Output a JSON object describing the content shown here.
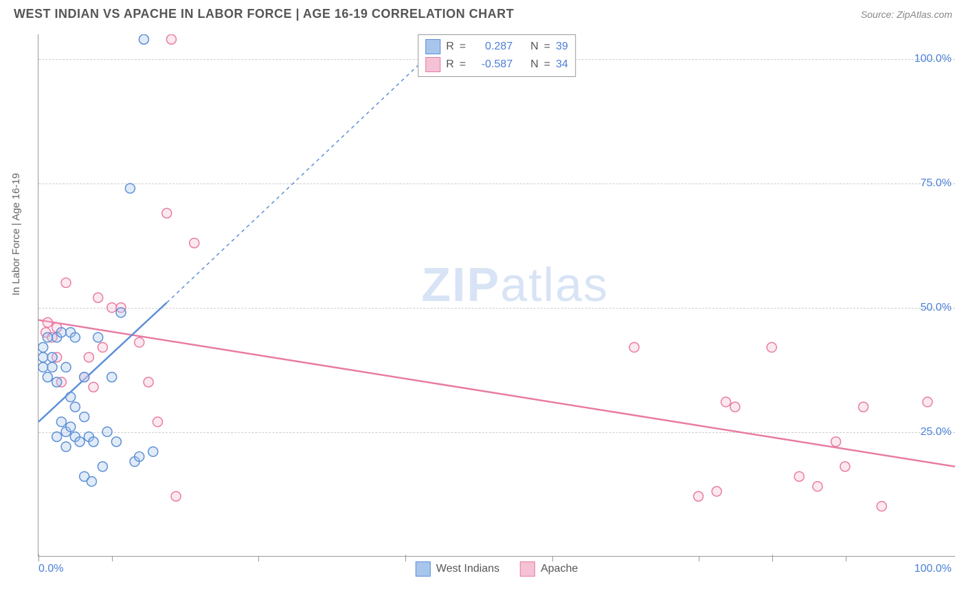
{
  "title": "WEST INDIAN VS APACHE IN LABOR FORCE | AGE 16-19 CORRELATION CHART",
  "source": "Source: ZipAtlas.com",
  "watermark_zip": "ZIP",
  "watermark_atlas": "atlas",
  "chart": {
    "type": "scatter",
    "background_color": "#ffffff",
    "grid_color": "#cccccc",
    "axis_color": "#999999",
    "axis_label_color": "#4a7fd8",
    "ylabel": "In Labor Force | Age 16-19",
    "ylabel_color": "#666666",
    "xlim": [
      0,
      100
    ],
    "ylim": [
      0,
      105
    ],
    "x_ticks": [
      0,
      40,
      80
    ],
    "x_tick_labels": [
      "0.0%",
      "",
      "100.0%"
    ],
    "x_minor_ticks": [
      8,
      24,
      56,
      72,
      88
    ],
    "y_gridlines": [
      25,
      50,
      75,
      100
    ],
    "y_tick_labels": [
      "25.0%",
      "50.0%",
      "75.0%",
      "100.0%"
    ],
    "marker_radius": 7,
    "marker_stroke_width": 1.5,
    "marker_fill_opacity": 0.35,
    "line_width": 2.5,
    "dash_pattern": "5,5"
  },
  "series": {
    "west_indians": {
      "label": "West Indians",
      "color_stroke": "#5b8fd6",
      "color_fill": "#a8c5ec",
      "r_value": "0.287",
      "n_value": "39",
      "trend_solid": {
        "x1": 0,
        "y1": 27,
        "x2": 14,
        "y2": 51
      },
      "trend_dashed": {
        "x1": 14,
        "y1": 51,
        "x2": 45,
        "y2": 105
      },
      "points": [
        [
          0.5,
          40
        ],
        [
          0.5,
          38
        ],
        [
          0.5,
          42
        ],
        [
          1,
          36
        ],
        [
          1,
          44
        ],
        [
          1.5,
          38
        ],
        [
          1.5,
          40
        ],
        [
          2,
          35
        ],
        [
          2,
          44
        ],
        [
          2,
          24
        ],
        [
          2.5,
          45
        ],
        [
          2.5,
          27
        ],
        [
          3,
          25
        ],
        [
          3,
          22
        ],
        [
          3,
          38
        ],
        [
          3.5,
          45
        ],
        [
          3.5,
          26
        ],
        [
          3.5,
          32
        ],
        [
          4,
          44
        ],
        [
          4,
          24
        ],
        [
          4.5,
          23
        ],
        [
          5,
          16
        ],
        [
          5,
          28
        ],
        [
          5,
          36
        ],
        [
          5.5,
          24
        ],
        [
          5.8,
          15
        ],
        [
          6,
          23
        ],
        [
          6.5,
          44
        ],
        [
          7,
          18
        ],
        [
          7.5,
          25
        ],
        [
          8,
          36
        ],
        [
          8.5,
          23
        ],
        [
          9,
          49
        ],
        [
          10,
          74
        ],
        [
          10.5,
          19
        ],
        [
          11,
          20
        ],
        [
          11.5,
          104
        ],
        [
          12.5,
          21
        ],
        [
          4,
          30
        ]
      ]
    },
    "apache": {
      "label": "Apache",
      "color_stroke": "#e87ba3",
      "color_fill": "#f5c1d5",
      "r_value": "-0.587",
      "n_value": "34",
      "trend_solid": {
        "x1": 0,
        "y1": 47.5,
        "x2": 100,
        "y2": 18
      },
      "points": [
        [
          0.8,
          45
        ],
        [
          1,
          47
        ],
        [
          1.5,
          44
        ],
        [
          2,
          40
        ],
        [
          2,
          46
        ],
        [
          2.5,
          35
        ],
        [
          3,
          55
        ],
        [
          5,
          36
        ],
        [
          6,
          34
        ],
        [
          6.5,
          52
        ],
        [
          7,
          42
        ],
        [
          8,
          50
        ],
        [
          9,
          50
        ],
        [
          11,
          43
        ],
        [
          12,
          35
        ],
        [
          13,
          27
        ],
        [
          14,
          69
        ],
        [
          14.5,
          104
        ],
        [
          15,
          12
        ],
        [
          17,
          63
        ],
        [
          65,
          42
        ],
        [
          72,
          12
        ],
        [
          74,
          13
        ],
        [
          75,
          31
        ],
        [
          76,
          30
        ],
        [
          80,
          42
        ],
        [
          83,
          16
        ],
        [
          85,
          14
        ],
        [
          87,
          23
        ],
        [
          88,
          18
        ],
        [
          90,
          30
        ],
        [
          92,
          10
        ],
        [
          97,
          31
        ],
        [
          5.5,
          40
        ]
      ]
    }
  },
  "legend_top": {
    "r_label": "R",
    "n_label": "N",
    "eq": "="
  },
  "legend_bottom": {
    "swatch_size": 22
  }
}
